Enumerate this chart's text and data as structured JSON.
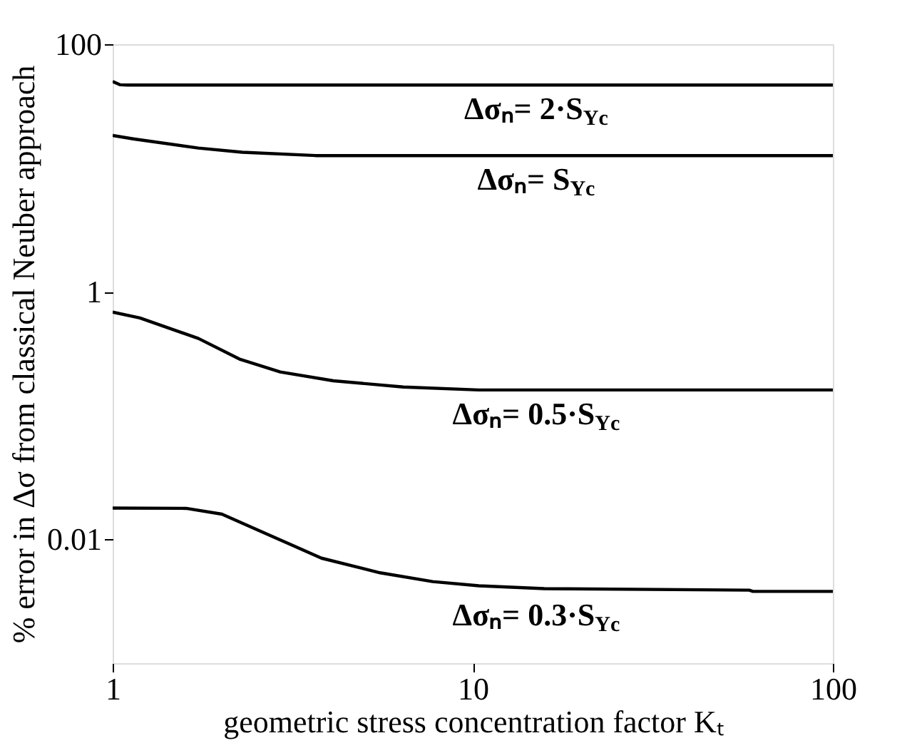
{
  "chart_data": {
    "type": "line",
    "xlabel": "geometric stress concentration factor Kₜ",
    "ylabel": "% error in Δσ from classical Neuber approach",
    "log": "xy",
    "xlim": [
      1,
      100
    ],
    "ylim": [
      0.001,
      100
    ],
    "xticks": [
      1,
      10,
      100
    ],
    "yticks": [
      0.01,
      1,
      100
    ],
    "grid": false,
    "legend": false,
    "marker": "none",
    "line_style": "solid",
    "series": [
      {
        "name": "Δσₙ= 2·S$_{Yc}$",
        "color": "#000000",
        "x": [
          1,
          1.05,
          1.1,
          100
        ],
        "values": [
          50,
          47,
          46.8,
          46.8
        ]
      },
      {
        "name": "Δσₙ= S$_{Yc}$",
        "color": "#000000",
        "x": [
          1,
          1.14,
          1.73,
          2.29,
          3.66,
          100
        ],
        "values": [
          18.3,
          17.2,
          14.5,
          13.4,
          12.6,
          12.6
        ]
      },
      {
        "name": "Δσₙ= 0.5·S$_{Yc}$",
        "color": "#000000",
        "x": [
          1,
          1.19,
          1.73,
          2.25,
          2.92,
          4.1,
          6.42,
          10.4,
          100
        ],
        "values": [
          0.685,
          0.615,
          0.42,
          0.286,
          0.225,
          0.191,
          0.17,
          0.161,
          0.161
        ]
      },
      {
        "name": "Δσₙ= 0.3·S$_{Yc}$",
        "color": "#000000",
        "x": [
          1,
          1.6,
          2.01,
          2.71,
          3.8,
          5.53,
          7.74,
          10.4,
          15.8,
          58.6,
          60,
          100
        ],
        "values": [
          0.0179,
          0.0178,
          0.016,
          0.0109,
          0.00705,
          0.00537,
          0.00456,
          0.00422,
          0.004,
          0.00389,
          0.0038,
          0.0038
        ]
      }
    ]
  }
}
